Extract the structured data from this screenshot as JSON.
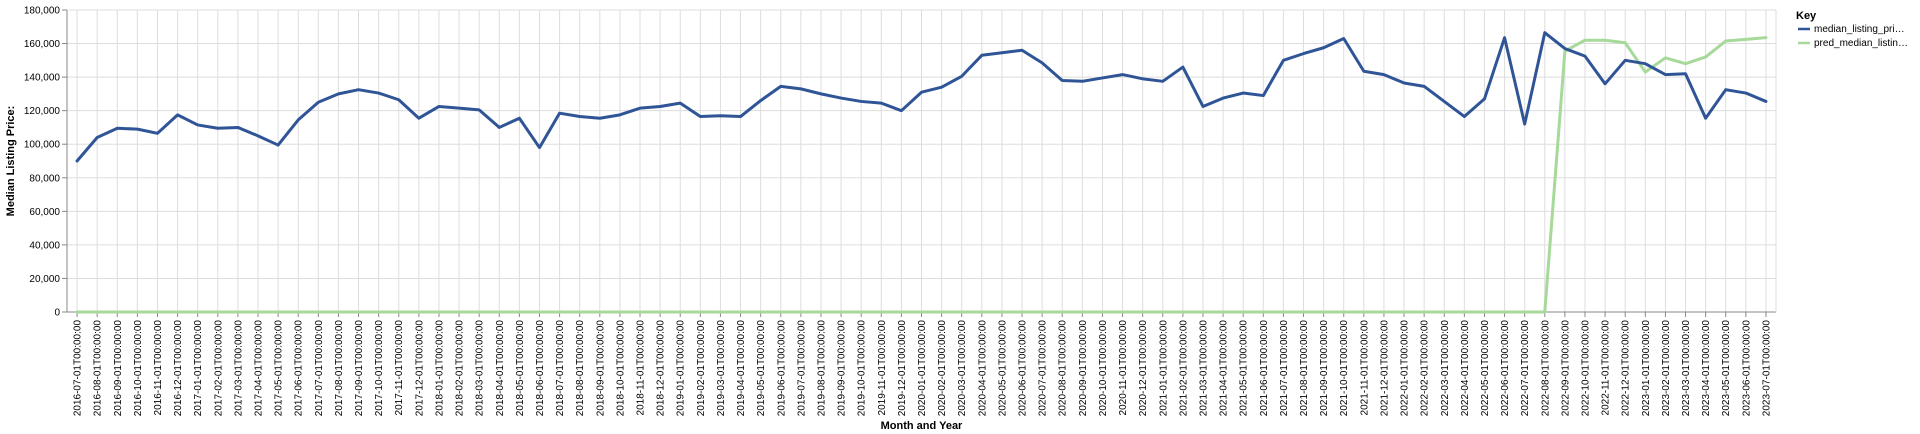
{
  "chart_data": {
    "type": "line",
    "xlabel": "Month and Year",
    "ylabel": "Median Listing Price:",
    "ylim": [
      0,
      180000
    ],
    "yticks": [
      0,
      20000,
      40000,
      60000,
      80000,
      100000,
      120000,
      140000,
      160000,
      180000
    ],
    "ytick_labels": [
      "0",
      "20,000",
      "40,000",
      "60,000",
      "80,000",
      "100,000",
      "120,000",
      "140,000",
      "160,000",
      "180,000"
    ],
    "grid": true,
    "legend": {
      "title": "Key",
      "placement": "right",
      "items": [
        {
          "label": "median_listing_pri…",
          "color": "#2f5597"
        },
        {
          "label": "pred_median_listin…",
          "color": "#a6d99a"
        }
      ]
    },
    "categories": [
      "2016-07-01T00:00:00",
      "2016-08-01T00:00:00",
      "2016-09-01T00:00:00",
      "2016-10-01T00:00:00",
      "2016-11-01T00:00:00",
      "2016-12-01T00:00:00",
      "2017-01-01T00:00:00",
      "2017-02-01T00:00:00",
      "2017-03-01T00:00:00",
      "2017-04-01T00:00:00",
      "2017-05-01T00:00:00",
      "2017-06-01T00:00:00",
      "2017-07-01T00:00:00",
      "2017-08-01T00:00:00",
      "2017-09-01T00:00:00",
      "2017-10-01T00:00:00",
      "2017-11-01T00:00:00",
      "2017-12-01T00:00:00",
      "2018-01-01T00:00:00",
      "2018-02-01T00:00:00",
      "2018-03-01T00:00:00",
      "2018-04-01T00:00:00",
      "2018-05-01T00:00:00",
      "2018-06-01T00:00:00",
      "2018-07-01T00:00:00",
      "2018-08-01T00:00:00",
      "2018-09-01T00:00:00",
      "2018-10-01T00:00:00",
      "2018-11-01T00:00:00",
      "2018-12-01T00:00:00",
      "2019-01-01T00:00:00",
      "2019-02-01T00:00:00",
      "2019-03-01T00:00:00",
      "2019-04-01T00:00:00",
      "2019-05-01T00:00:00",
      "2019-06-01T00:00:00",
      "2019-07-01T00:00:00",
      "2019-08-01T00:00:00",
      "2019-09-01T00:00:00",
      "2019-10-01T00:00:00",
      "2019-11-01T00:00:00",
      "2019-12-01T00:00:00",
      "2020-01-01T00:00:00",
      "2020-02-01T00:00:00",
      "2020-03-01T00:00:00",
      "2020-04-01T00:00:00",
      "2020-05-01T00:00:00",
      "2020-06-01T00:00:00",
      "2020-07-01T00:00:00",
      "2020-08-01T00:00:00",
      "2020-09-01T00:00:00",
      "2020-10-01T00:00:00",
      "2020-11-01T00:00:00",
      "2020-12-01T00:00:00",
      "2021-01-01T00:00:00",
      "2021-02-01T00:00:00",
      "2021-03-01T00:00:00",
      "2021-04-01T00:00:00",
      "2021-05-01T00:00:00",
      "2021-06-01T00:00:00",
      "2021-07-01T00:00:00",
      "2021-08-01T00:00:00",
      "2021-09-01T00:00:00",
      "2021-10-01T00:00:00",
      "2021-11-01T00:00:00",
      "2021-12-01T00:00:00",
      "2022-01-01T00:00:00",
      "2022-02-01T00:00:00",
      "2022-03-01T00:00:00",
      "2022-04-01T00:00:00",
      "2022-05-01T00:00:00",
      "2022-06-01T00:00:00",
      "2022-07-01T00:00:00",
      "2022-08-01T00:00:00",
      "2022-09-01T00:00:00",
      "2022-10-01T00:00:00",
      "2022-11-01T00:00:00",
      "2022-12-01T00:00:00",
      "2023-01-01T00:00:00",
      "2023-02-01T00:00:00",
      "2023-03-01T00:00:00",
      "2023-04-01T00:00:00",
      "2023-05-01T00:00:00",
      "2023-06-01T00:00:00",
      "2023-07-01T00:00:00"
    ],
    "series": [
      {
        "name": "median_listing_pri…",
        "color": "#2f5597",
        "values": [
          90000,
          104000,
          109500,
          109000,
          106500,
          117500,
          111500,
          109500,
          110000,
          105000,
          99500,
          114500,
          125000,
          130000,
          132500,
          130500,
          126500,
          115500,
          122500,
          121500,
          120500,
          110000,
          115500,
          98000,
          118500,
          116500,
          115500,
          117500,
          121500,
          122500,
          124500,
          116500,
          117000,
          116500,
          126000,
          134500,
          133000,
          130000,
          127500,
          125500,
          124500,
          120000,
          131000,
          134000,
          140500,
          153000,
          154500,
          156000,
          148500,
          138000,
          137500,
          139500,
          141500,
          139000,
          137500,
          146000,
          122500,
          127500,
          130500,
          129000,
          150000,
          154000,
          157500,
          163000,
          143500,
          141500,
          136500,
          134500,
          125500,
          116500,
          127000,
          163500,
          112000,
          166500,
          157000,
          152500,
          136000,
          150000,
          148000,
          141500,
          142000,
          115500,
          132500,
          130500,
          125500
        ]
      },
      {
        "name": "pred_median_listin…",
        "color": "#a6d99a",
        "values": [
          0,
          0,
          0,
          0,
          0,
          0,
          0,
          0,
          0,
          0,
          0,
          0,
          0,
          0,
          0,
          0,
          0,
          0,
          0,
          0,
          0,
          0,
          0,
          0,
          0,
          0,
          0,
          0,
          0,
          0,
          0,
          0,
          0,
          0,
          0,
          0,
          0,
          0,
          0,
          0,
          0,
          0,
          0,
          0,
          0,
          0,
          0,
          0,
          0,
          0,
          0,
          0,
          0,
          0,
          0,
          0,
          0,
          0,
          0,
          0,
          0,
          0,
          0,
          0,
          0,
          0,
          0,
          0,
          0,
          0,
          0,
          0,
          0,
          0,
          155500,
          162000,
          162000,
          160500,
          143000,
          151500,
          148000,
          152000,
          161500,
          162500,
          163500
        ]
      }
    ]
  }
}
